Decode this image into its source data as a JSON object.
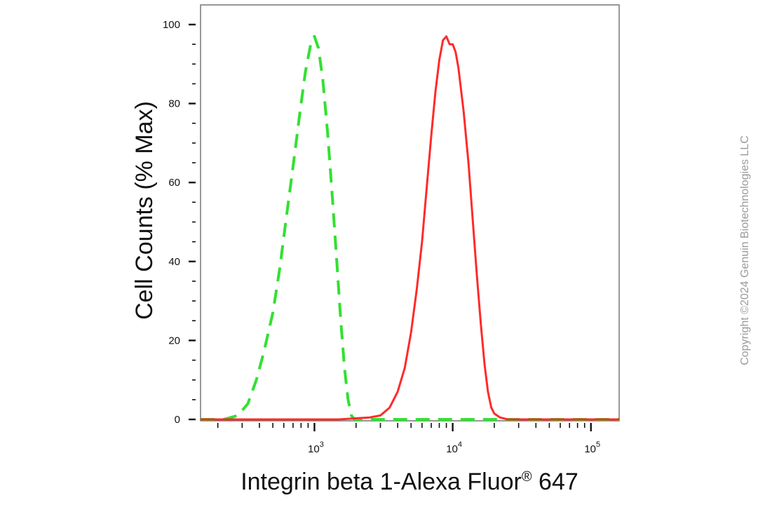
{
  "copyright": "Copyright ©2024 Genuin Biotechnologies LLC",
  "colors": {
    "isotype": "#33e033",
    "sample": "#ff2a2a",
    "axes": "#7f7f7f",
    "ticks": "#111111",
    "copyright": "#9a9a9a"
  },
  "chart_data": {
    "type": "line",
    "title": "",
    "xlabel_main": "Integrin beta 1-Alexa Fluor",
    "xlabel_mark": "®",
    "xlabel_tail": " 647",
    "ylabel": "Cell Counts (% Max)",
    "xscale": "log",
    "xlim": [
      150,
      160000
    ],
    "ylim": [
      0,
      105
    ],
    "grid": false,
    "legend": "none",
    "y_ticks": [
      0,
      20,
      40,
      60,
      80,
      100
    ],
    "y_tick_labels": [
      "0",
      "20",
      "40",
      "60",
      "80",
      "100"
    ],
    "x_tick_labels": [
      {
        "value": 1000,
        "base": "10",
        "exp": "3"
      },
      {
        "value": 10000,
        "base": "10",
        "exp": "4"
      },
      {
        "value": 100000,
        "base": "10",
        "exp": "5"
      }
    ],
    "series": [
      {
        "style": "dashed",
        "color": "#33e033",
        "points": [
          [
            150,
            0
          ],
          [
            220,
            0
          ],
          [
            280,
            1
          ],
          [
            330,
            4
          ],
          [
            380,
            10
          ],
          [
            430,
            17
          ],
          [
            500,
            27
          ],
          [
            560,
            38
          ],
          [
            620,
            50
          ],
          [
            700,
            64
          ],
          [
            780,
            77
          ],
          [
            860,
            88
          ],
          [
            940,
            95
          ],
          [
            1000,
            97
          ],
          [
            1070,
            94
          ],
          [
            1150,
            86
          ],
          [
            1250,
            72
          ],
          [
            1350,
            56
          ],
          [
            1450,
            40
          ],
          [
            1550,
            25
          ],
          [
            1650,
            13
          ],
          [
            1750,
            5
          ],
          [
            1850,
            1
          ],
          [
            1950,
            0
          ],
          [
            3000,
            0
          ],
          [
            160000,
            0
          ]
        ]
      },
      {
        "style": "solid",
        "color": "#ff2a2a",
        "points": [
          [
            150,
            0
          ],
          [
            700,
            0
          ],
          [
            1500,
            0
          ],
          [
            2500,
            0.5
          ],
          [
            3000,
            1
          ],
          [
            3500,
            3
          ],
          [
            4000,
            7
          ],
          [
            4500,
            13
          ],
          [
            5000,
            22
          ],
          [
            5500,
            33
          ],
          [
            6000,
            45
          ],
          [
            6500,
            59
          ],
          [
            7000,
            72
          ],
          [
            7500,
            83
          ],
          [
            8000,
            91
          ],
          [
            8500,
            96
          ],
          [
            9000,
            97
          ],
          [
            9500,
            95
          ],
          [
            10000,
            95
          ],
          [
            10500,
            93
          ],
          [
            11000,
            89
          ],
          [
            12000,
            78
          ],
          [
            13000,
            65
          ],
          [
            14000,
            50
          ],
          [
            15000,
            36
          ],
          [
            16000,
            24
          ],
          [
            17000,
            14
          ],
          [
            18000,
            7
          ],
          [
            19000,
            3
          ],
          [
            20000,
            1.5
          ],
          [
            22000,
            0.5
          ],
          [
            25000,
            0
          ],
          [
            160000,
            0
          ]
        ]
      }
    ]
  }
}
